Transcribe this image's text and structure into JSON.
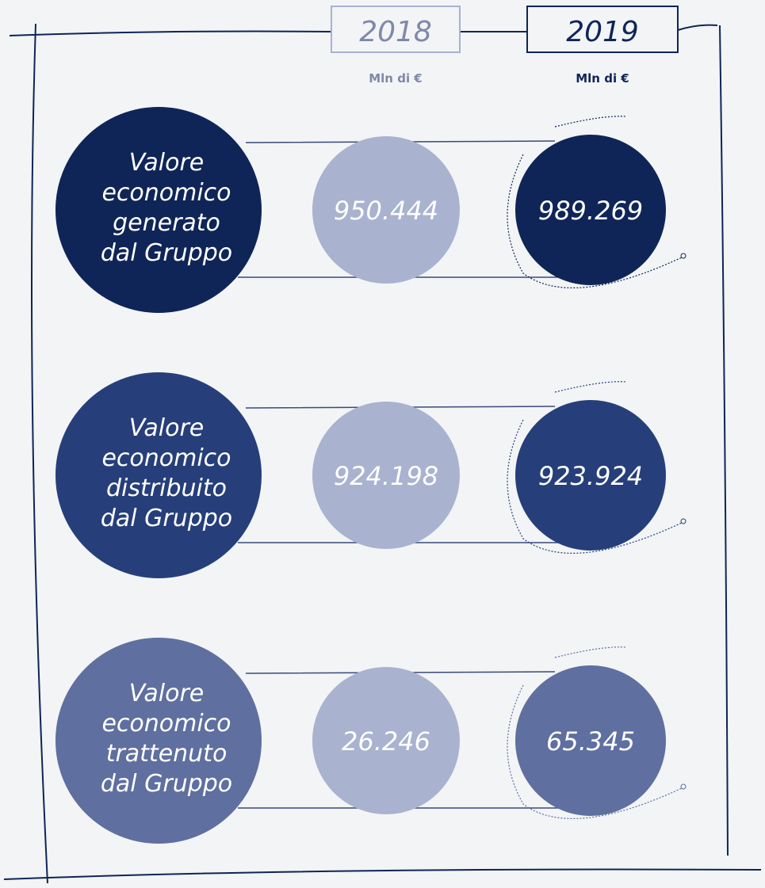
{
  "header": {
    "years": [
      "2018",
      "2019"
    ],
    "units": [
      "Mln di €",
      "Mln di €"
    ]
  },
  "rows": [
    {
      "label": [
        "Valore",
        "economico",
        "generato",
        "dal Gruppo"
      ],
      "values": [
        "950.444",
        "989.269"
      ],
      "color": "#0f2557"
    },
    {
      "label": [
        "Valore",
        "economico",
        "distribuito",
        "dal Gruppo"
      ],
      "values": [
        "924.198",
        "923.924"
      ],
      "color": "#263f7a"
    },
    {
      "label": [
        "Valore",
        "economico",
        "trattenuto",
        "dal Gruppo"
      ],
      "values": [
        "26.246",
        "65.345"
      ],
      "color": "#5f6f9f"
    }
  ]
}
